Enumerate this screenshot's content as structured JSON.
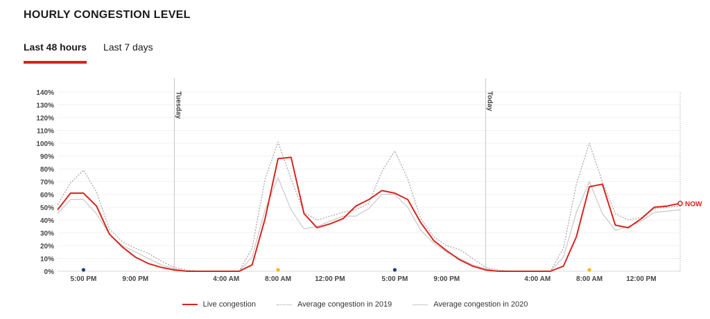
{
  "title": "HOURLY CONGESTION LEVEL",
  "tabs": [
    {
      "label": "Last 48 hours",
      "active": true
    },
    {
      "label": "Last 7 days",
      "active": false
    }
  ],
  "colors": {
    "live": "#d9231d",
    "avg2019": "#9a9a9a",
    "avg2020": "#c8c8c8",
    "accent": "#d9231d",
    "night_dot": "#1f3f6e",
    "day_dot": "#f5b800"
  },
  "chart_data": {
    "type": "line",
    "ylim": [
      0,
      140
    ],
    "yticks": [
      "0%",
      "10%",
      "20%",
      "30%",
      "40%",
      "50%",
      "60%",
      "70%",
      "80%",
      "90%",
      "100%",
      "110%",
      "120%",
      "130%",
      "140%"
    ],
    "xlim": [
      0,
      48
    ],
    "xticks": [
      {
        "x": 2,
        "label": "5:00 PM"
      },
      {
        "x": 6,
        "label": "9:00 PM"
      },
      {
        "x": 13,
        "label": "4:00 AM"
      },
      {
        "x": 17,
        "label": "8:00 AM"
      },
      {
        "x": 21,
        "label": "12:00 PM"
      },
      {
        "x": 26,
        "label": "5:00 PM"
      },
      {
        "x": 30,
        "label": "9:00 PM"
      },
      {
        "x": 37,
        "label": "4:00 AM"
      },
      {
        "x": 41,
        "label": "8:00 AM"
      },
      {
        "x": 45,
        "label": "12:00 PM"
      }
    ],
    "day_markers": [
      {
        "x": 9,
        "label": "Tuesday"
      },
      {
        "x": 33,
        "label": "Today"
      }
    ],
    "now": {
      "x": 48,
      "label": "NOW"
    },
    "dots": [
      {
        "x": 2,
        "kind": "night"
      },
      {
        "x": 17,
        "kind": "day"
      },
      {
        "x": 26,
        "kind": "night"
      },
      {
        "x": 41,
        "kind": "day"
      }
    ],
    "series": [
      {
        "name": "Live congestion",
        "style": "solid-red",
        "values": [
          48,
          61,
          61,
          51,
          29,
          19,
          11,
          6,
          3,
          1,
          0,
          0,
          0,
          0,
          0,
          5,
          41,
          88,
          89,
          45,
          34,
          37,
          41,
          51,
          56,
          63,
          61,
          56,
          38,
          24,
          16,
          9,
          4,
          1,
          0,
          0,
          0,
          0,
          0,
          4,
          27,
          66,
          68,
          36,
          34,
          41,
          50,
          51,
          53
        ]
      },
      {
        "name": "Average congestion in 2019",
        "style": "dotted-gray",
        "values": [
          52,
          69,
          79,
          62,
          33,
          23,
          18,
          14,
          8,
          3,
          1,
          0,
          0,
          0,
          0,
          18,
          72,
          101,
          72,
          46,
          40,
          43,
          46,
          48,
          53,
          78,
          94,
          72,
          41,
          27,
          20,
          17,
          10,
          3,
          1,
          0,
          0,
          0,
          0,
          18,
          68,
          100,
          70,
          45,
          40,
          42,
          49,
          50,
          51
        ]
      },
      {
        "name": "Average congestion in 2020",
        "style": "solid-lightgray",
        "values": [
          45,
          56,
          56,
          45,
          29,
          20,
          15,
          10,
          5,
          2,
          0,
          0,
          0,
          0,
          0,
          11,
          48,
          73,
          48,
          33,
          35,
          39,
          43,
          43,
          49,
          60,
          60,
          50,
          32,
          22,
          15,
          10,
          5,
          2,
          0,
          0,
          0,
          0,
          0,
          11,
          46,
          70,
          45,
          32,
          35,
          39,
          46,
          47,
          48
        ]
      }
    ]
  }
}
